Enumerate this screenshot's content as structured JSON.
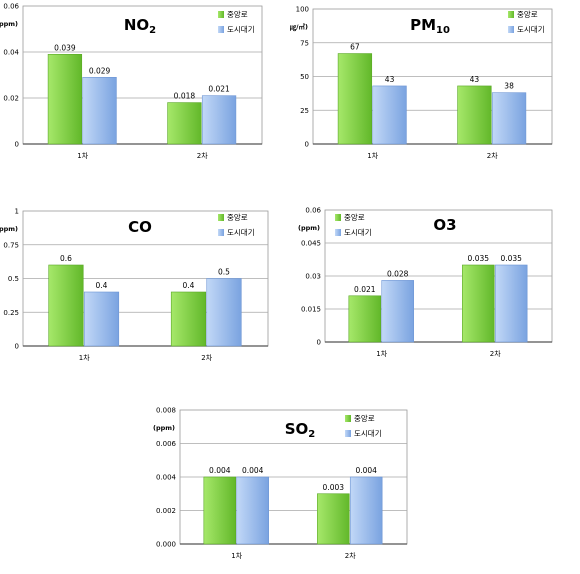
{
  "legend": [
    "중앙로",
    "도시대기"
  ],
  "colors": {
    "green_light": "#a6e86a",
    "green_dark": "#62b82a",
    "blue_light": "#c2d8f7",
    "blue_dark": "#7aa3e0"
  },
  "chart_data": [
    {
      "type": "bar",
      "title": "NO",
      "title_sub": "2",
      "ylabel": "(ppm)",
      "categories": [
        "1차",
        "2차"
      ],
      "series": [
        {
          "name": "중앙로",
          "values": [
            0.039,
            0.018
          ],
          "labels": [
            "0.039",
            "0.018"
          ]
        },
        {
          "name": "도시대기",
          "values": [
            0.029,
            0.021
          ],
          "labels": [
            "0.029",
            "0.021"
          ]
        }
      ],
      "ylim": [
        0,
        0.06
      ],
      "yticks": [
        0,
        0.02,
        0.04,
        0.06
      ],
      "ytick_labels": [
        "0",
        "0.02",
        "0.04",
        "0.06"
      ],
      "grid": true,
      "legend_position": "top-right"
    },
    {
      "type": "bar",
      "title": "PM",
      "title_sub": "10",
      "ylabel": "(㎍/㎥)",
      "categories": [
        "1차",
        "2차"
      ],
      "series": [
        {
          "name": "중앙로",
          "values": [
            67,
            43
          ],
          "labels": [
            "67",
            "43"
          ]
        },
        {
          "name": "도시대기",
          "values": [
            43,
            38
          ],
          "labels": [
            "43",
            "38"
          ]
        }
      ],
      "ylim": [
        0,
        100
      ],
      "yticks": [
        0,
        25,
        50,
        75,
        100
      ],
      "ytick_labels": [
        "0",
        "25",
        "50",
        "75",
        "100"
      ],
      "grid": true,
      "legend_position": "top-right"
    },
    {
      "type": "bar",
      "title": "CO",
      "title_sub": "",
      "ylabel": "(ppm)",
      "categories": [
        "1차",
        "2차"
      ],
      "series": [
        {
          "name": "중앙로",
          "values": [
            0.6,
            0.4
          ],
          "labels": [
            "0.6",
            "0.4"
          ]
        },
        {
          "name": "도시대기",
          "values": [
            0.4,
            0.5
          ],
          "labels": [
            "0.4",
            "0.5"
          ]
        }
      ],
      "ylim": [
        0,
        1
      ],
      "yticks": [
        0,
        0.25,
        0.5,
        0.75,
        1
      ],
      "ytick_labels": [
        "0",
        "0.25",
        "0.5",
        "0.75",
        "1"
      ],
      "grid": true,
      "legend_position": "top-right"
    },
    {
      "type": "bar",
      "title": "O3",
      "title_sub": "",
      "ylabel": "(ppm)",
      "categories": [
        "1차",
        "2차"
      ],
      "series": [
        {
          "name": "중앙로",
          "values": [
            0.021,
            0.035
          ],
          "labels": [
            "0.021",
            "0.035"
          ]
        },
        {
          "name": "도시대기",
          "values": [
            0.028,
            0.035
          ],
          "labels": [
            "0.028",
            "0.035"
          ]
        }
      ],
      "ylim": [
        0,
        0.06
      ],
      "yticks": [
        0,
        0.015,
        0.03,
        0.045,
        0.06
      ],
      "ytick_labels": [
        "0",
        "0.015",
        "0.03",
        "0.045",
        "0.06"
      ],
      "grid": true,
      "legend_position": "top-left"
    },
    {
      "type": "bar",
      "title": "SO",
      "title_sub": "2",
      "ylabel": "(ppm)",
      "categories": [
        "1차",
        "2차"
      ],
      "series": [
        {
          "name": "중앙로",
          "values": [
            0.004,
            0.003
          ],
          "labels": [
            "0.004",
            "0.003"
          ]
        },
        {
          "name": "도시대기",
          "values": [
            0.004,
            0.004
          ],
          "labels": [
            "0.004",
            "0.004"
          ]
        }
      ],
      "ylim": [
        0,
        0.008
      ],
      "yticks": [
        0,
        0.002,
        0.004,
        0.006,
        0.008
      ],
      "ytick_labels": [
        "0.000",
        "0.002",
        "0.004",
        "0.006",
        "0.008"
      ],
      "grid": true,
      "legend_position": "top-right"
    }
  ]
}
